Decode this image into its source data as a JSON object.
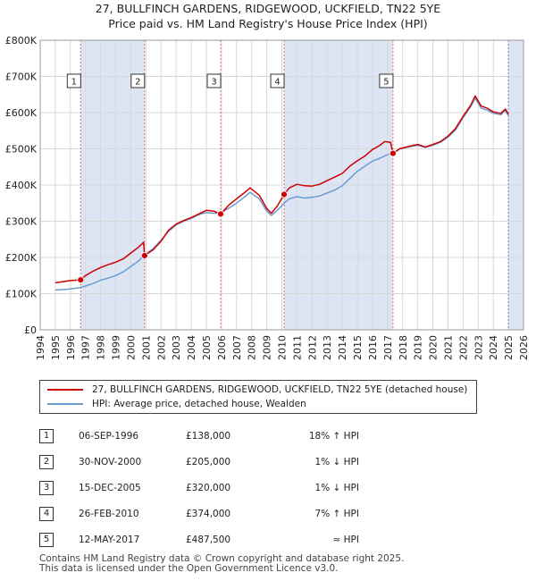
{
  "title": "27, BULLFINCH GARDENS, RIDGEWOOD, UCKFIELD, TN22 5YE",
  "subtitle": "Price paid vs. HM Land Registry's House Price Index (HPI)",
  "colors": {
    "property": "#cc0000",
    "hpi": "#6a9bd1",
    "shade": "#dde5f5",
    "grid": "#d8d8d8",
    "marker_line": "#e07070"
  },
  "legend": [
    {
      "label": "27, BULLFINCH GARDENS, RIDGEWOOD, UCKFIELD, TN22 5YE (detached house)",
      "color": "#cc0000"
    },
    {
      "label": "HPI: Average price, detached house, Wealden",
      "color": "#6a9bd1"
    }
  ],
  "sales": [
    {
      "num": "1",
      "date": "06-SEP-1996",
      "price": "£138,000",
      "hpi": "18% ↑ HPI"
    },
    {
      "num": "2",
      "date": "30-NOV-2000",
      "price": "£205,000",
      "hpi": "1% ↓ HPI"
    },
    {
      "num": "3",
      "date": "15-DEC-2005",
      "price": "£320,000",
      "hpi": "1% ↓ HPI"
    },
    {
      "num": "4",
      "date": "26-FEB-2010",
      "price": "£374,000",
      "hpi": "7% ↑ HPI"
    },
    {
      "num": "5",
      "date": "12-MAY-2017",
      "price": "£487,500",
      "hpi": "≈ HPI"
    }
  ],
  "footer": {
    "line1": "Contains HM Land Registry data © Crown copyright and database right 2025.",
    "line2": "This data is licensed under the Open Government Licence v3.0."
  },
  "chart_data": {
    "type": "line",
    "xlim": [
      1994,
      2026
    ],
    "ylim": [
      0,
      800000
    ],
    "x_ticks": [
      "1994",
      "1995",
      "1996",
      "1997",
      "1998",
      "1999",
      "2000",
      "2001",
      "2002",
      "2003",
      "2004",
      "2005",
      "2006",
      "2007",
      "2008",
      "2009",
      "2010",
      "2011",
      "2012",
      "2013",
      "2014",
      "2015",
      "2016",
      "2017",
      "2018",
      "2019",
      "2020",
      "2021",
      "2022",
      "2023",
      "2024",
      "2025",
      "2026"
    ],
    "y_ticks": [
      {
        "value": 0,
        "label": "£0"
      },
      {
        "value": 100000,
        "label": "£100K"
      },
      {
        "value": 200000,
        "label": "£200K"
      },
      {
        "value": 300000,
        "label": "£300K"
      },
      {
        "value": 400000,
        "label": "£400K"
      },
      {
        "value": 500000,
        "label": "£500K"
      },
      {
        "value": 600000,
        "label": "£600K"
      },
      {
        "value": 700000,
        "label": "£700K"
      },
      {
        "value": 800000,
        "label": "£800K"
      }
    ],
    "grid": true,
    "shaded_periods": [
      [
        1996.68,
        2000.91
      ],
      [
        2010.15,
        2017.36
      ],
      [
        2025.0,
        2026.0
      ]
    ],
    "sale_markers": [
      {
        "label": "1",
        "x": 1996.68,
        "y": 138000
      },
      {
        "label": "2",
        "x": 2000.91,
        "y": 205000
      },
      {
        "label": "3",
        "x": 2005.95,
        "y": 320000
      },
      {
        "label": "4",
        "x": 2010.15,
        "y": 374000
      },
      {
        "label": "5",
        "x": 2017.36,
        "y": 487500
      }
    ],
    "series": [
      {
        "name": "27, BULLFINCH GARDENS, RIDGEWOOD, UCKFIELD, TN22 5YE (detached house)",
        "x": [
          1995.0,
          1995.5,
          1996.0,
          1996.68,
          1997.0,
          1997.5,
          1998.0,
          1998.5,
          1999.0,
          1999.5,
          2000.0,
          2000.5,
          2000.85,
          2000.91,
          2001.5,
          2002.0,
          2002.5,
          2003.0,
          2003.5,
          2004.0,
          2004.5,
          2005.0,
          2005.5,
          2005.95,
          2006.5,
          2007.0,
          2007.5,
          2007.9,
          2008.5,
          2009.0,
          2009.3,
          2009.7,
          2010.15,
          2010.5,
          2011.0,
          2011.5,
          2012.0,
          2012.5,
          2013.0,
          2013.5,
          2014.0,
          2014.5,
          2015.0,
          2015.5,
          2016.0,
          2016.5,
          2016.8,
          2017.2,
          2017.36,
          2017.8,
          2018.5,
          2019.0,
          2019.5,
          2020.0,
          2020.5,
          2021.0,
          2021.5,
          2022.0,
          2022.5,
          2022.8,
          2023.2,
          2023.6,
          2024.0,
          2024.5,
          2024.8,
          2025.0
        ],
        "y": [
          130000,
          133000,
          136000,
          138000,
          150000,
          162000,
          172000,
          180000,
          187000,
          196000,
          212000,
          228000,
          242000,
          205000,
          222000,
          245000,
          275000,
          292000,
          302000,
          310000,
          320000,
          330000,
          328000,
          320000,
          345000,
          362000,
          378000,
          392000,
          372000,
          335000,
          322000,
          342000,
          374000,
          392000,
          402000,
          398000,
          397000,
          402000,
          412000,
          422000,
          432000,
          452000,
          467000,
          480000,
          498000,
          510000,
          520000,
          518000,
          487500,
          500000,
          508000,
          512000,
          505000,
          512000,
          520000,
          535000,
          556000,
          590000,
          620000,
          646000,
          618000,
          612000,
          602000,
          598000,
          610000,
          596000
        ]
      },
      {
        "name": "HPI: Average price, detached house, Wealden",
        "x": [
          1995.0,
          1995.5,
          1996.0,
          1996.68,
          1997.0,
          1997.5,
          1998.0,
          1998.5,
          1999.0,
          1999.5,
          2000.0,
          2000.5,
          2000.91,
          2001.5,
          2002.0,
          2002.5,
          2003.0,
          2003.5,
          2004.0,
          2004.5,
          2005.0,
          2005.5,
          2005.95,
          2006.5,
          2007.0,
          2007.5,
          2007.9,
          2008.5,
          2009.0,
          2009.3,
          2009.7,
          2010.15,
          2010.5,
          2011.0,
          2011.5,
          2012.0,
          2012.5,
          2013.0,
          2013.5,
          2014.0,
          2014.5,
          2015.0,
          2015.5,
          2016.0,
          2016.5,
          2017.0,
          2017.36,
          2017.8,
          2018.5,
          2019.0,
          2019.5,
          2020.0,
          2020.5,
          2021.0,
          2021.5,
          2022.0,
          2022.5,
          2022.8,
          2023.2,
          2023.6,
          2024.0,
          2024.5,
          2024.8,
          2025.0
        ],
        "y": [
          110000,
          111000,
          113000,
          117000,
          121000,
          128000,
          137000,
          143000,
          150000,
          160000,
          175000,
          190000,
          207000,
          225000,
          248000,
          272000,
          290000,
          300000,
          308000,
          318000,
          324000,
          322000,
          323000,
          336000,
          350000,
          366000,
          380000,
          362000,
          328000,
          316000,
          330000,
          350000,
          362000,
          368000,
          364000,
          366000,
          370000,
          378000,
          386000,
          398000,
          418000,
          438000,
          452000,
          466000,
          474000,
          484000,
          488000,
          500000,
          506000,
          510000,
          504000,
          510000,
          518000,
          532000,
          552000,
          586000,
          616000,
          640000,
          612000,
          607000,
          598000,
          594000,
          606000,
          592000
        ]
      }
    ]
  }
}
